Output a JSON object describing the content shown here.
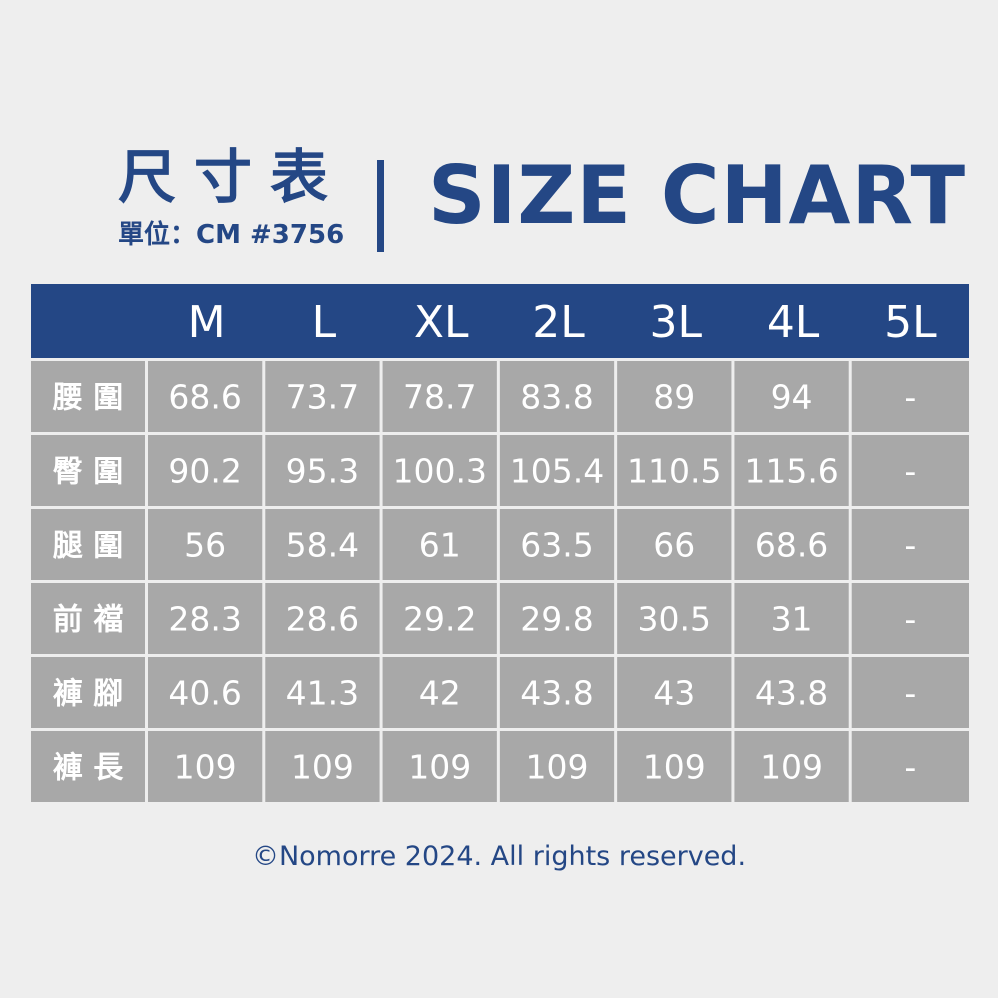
{
  "header": {
    "title_zh": "尺寸表",
    "unit_label": "單位：CM #3756",
    "title_en": "SIZE CHART"
  },
  "colors": {
    "header_bg": "#244785",
    "cell_bg": "#a8a8a8",
    "text_light": "#ffffff",
    "page_bg": "#eeeeee",
    "brand_blue": "#244785"
  },
  "chart_data": {
    "type": "table",
    "columns": [
      "M",
      "L",
      "XL",
      "2L",
      "3L",
      "4L",
      "5L"
    ],
    "rows": [
      {
        "label": "腰 圍",
        "values": [
          "68.6",
          "73.7",
          "78.7",
          "83.8",
          "89",
          "94",
          "-"
        ]
      },
      {
        "label": "臀 圍",
        "values": [
          "90.2",
          "95.3",
          "100.3",
          "105.4",
          "110.5",
          "115.6",
          "-"
        ]
      },
      {
        "label": "腿 圍",
        "values": [
          "56",
          "58.4",
          "61",
          "63.5",
          "66",
          "68.6",
          "-"
        ]
      },
      {
        "label": "前 襠",
        "values": [
          "28.3",
          "28.6",
          "29.2",
          "29.8",
          "30.5",
          "31",
          "-"
        ]
      },
      {
        "label": "褲 腳",
        "values": [
          "40.6",
          "41.3",
          "42",
          "43.8",
          "43",
          "43.8",
          "-"
        ]
      },
      {
        "label": "褲 長",
        "values": [
          "109",
          "109",
          "109",
          "109",
          "109",
          "109",
          "-"
        ]
      }
    ]
  },
  "footer": {
    "copyright": "©Nomorre 2024. All rights reserved."
  }
}
